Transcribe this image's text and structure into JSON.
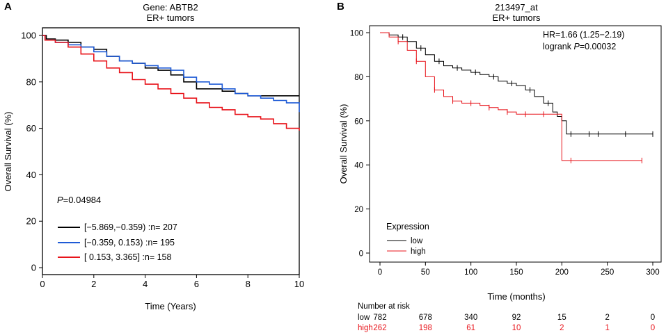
{
  "panels": {
    "a": {
      "letter": "A",
      "title_line1": "Gene: ABTB2",
      "title_line2": "ER+ tumors",
      "pvalue_prefix": "P",
      "pvalue_value": "=0.04984"
    },
    "b": {
      "letter": "B",
      "title_line1": "213497_at",
      "title_line2": "ER+ tumors",
      "hr_text": "HR=1.66 (1.25−2.19)",
      "logrank_prefix": "logrank ",
      "logrank_p": "P",
      "logrank_value": "=0.00032",
      "legend_title": "Expression",
      "risk_title": "Number at risk",
      "risk_rows": [
        {
          "label": "low",
          "color": "#000000",
          "values": [
            "782",
            "678",
            "340",
            "92",
            "15",
            "2",
            "0"
          ]
        },
        {
          "label": "high",
          "color": "#e8141b",
          "values": [
            "262",
            "198",
            "61",
            "10",
            "2",
            "1",
            "0"
          ]
        }
      ]
    }
  },
  "chart_data": [
    {
      "type": "line",
      "title": "Gene: ABTB2 ER+ tumors",
      "xlabel": "Time (Years)",
      "ylabel": "Overall Survival (%)",
      "xlim": [
        0,
        10
      ],
      "ylim": [
        0,
        100
      ],
      "xticks": [
        "0",
        "2",
        "4",
        "6",
        "8",
        "10"
      ],
      "yticks": [
        "0",
        "20",
        "40",
        "60",
        "80",
        "100"
      ],
      "annotation": "P=0.04984",
      "series": [
        {
          "name": "[−5.869,−0.359) :n= 207",
          "color": "#000000",
          "x": [
            0,
            0.15,
            0.5,
            1.0,
            1.5,
            2.0,
            2.5,
            3.0,
            3.5,
            4.0,
            4.5,
            5.0,
            5.5,
            6.0,
            6.5,
            7.0,
            7.5,
            8.0,
            9.0,
            10.0
          ],
          "y": [
            100,
            98.5,
            98,
            97,
            95,
            94,
            91,
            89,
            88,
            86,
            85,
            83,
            80,
            77,
            77,
            76,
            75,
            74,
            74,
            74
          ]
        },
        {
          "name": "[−0.359, 0.153) :n= 195",
          "color": "#1f5bd6",
          "x": [
            0,
            0.1,
            0.5,
            1.0,
            1.5,
            2.0,
            2.5,
            3.0,
            3.5,
            4.0,
            4.5,
            5.0,
            5.5,
            6.0,
            6.5,
            7.0,
            7.5,
            8.0,
            8.5,
            9.0,
            9.5,
            10.0
          ],
          "y": [
            100,
            98,
            97,
            96,
            95,
            93,
            91,
            89,
            88,
            87,
            86,
            85,
            82,
            80,
            79,
            77,
            75,
            74,
            73,
            72,
            71,
            67
          ]
        },
        {
          "name": "[ 0.153, 3.365] :n= 158",
          "color": "#e8141b",
          "x": [
            0,
            0.1,
            0.5,
            1.0,
            1.5,
            2.0,
            2.5,
            3.0,
            3.5,
            4.0,
            4.5,
            5.0,
            5.5,
            6.0,
            6.5,
            7.0,
            7.5,
            8.0,
            8.5,
            9.0,
            9.5,
            10.0
          ],
          "y": [
            100,
            98,
            97,
            95,
            92,
            89,
            86,
            84,
            81,
            79,
            77,
            75,
            73,
            71,
            69,
            68,
            66,
            65,
            64,
            62,
            60,
            59
          ]
        }
      ]
    },
    {
      "type": "line",
      "title": "213497_at ER+ tumors",
      "xlabel": "Time (months)",
      "ylabel": "Overall Survival (%)",
      "xlim": [
        0,
        300
      ],
      "ylim": [
        0,
        100
      ],
      "xticks": [
        "0",
        "50",
        "100",
        "150",
        "200",
        "250",
        "300"
      ],
      "yticks": [
        "0",
        "20",
        "40",
        "60",
        "80",
        "100"
      ],
      "series": [
        {
          "name": "low",
          "color": "#000000",
          "x": [
            0,
            10,
            20,
            30,
            40,
            50,
            60,
            70,
            80,
            90,
            100,
            110,
            120,
            130,
            140,
            150,
            160,
            170,
            180,
            190,
            195,
            198,
            200,
            205,
            210,
            220,
            250,
            300
          ],
          "y": [
            100,
            99,
            98,
            96,
            93,
            90,
            87,
            85,
            84,
            83,
            82,
            81,
            80,
            78,
            77,
            76,
            74,
            71,
            68,
            64,
            62,
            62,
            60,
            54,
            54,
            54,
            54,
            54
          ],
          "censor_x": [
            25,
            45,
            65,
            85,
            105,
            125,
            145,
            165,
            185,
            210,
            230,
            240,
            270,
            300
          ]
        },
        {
          "name": "high",
          "color": "#e8141b",
          "x": [
            0,
            10,
            20,
            30,
            40,
            50,
            60,
            70,
            80,
            90,
            100,
            110,
            120,
            130,
            140,
            150,
            170,
            190,
            197,
            200,
            210,
            230,
            250,
            288
          ],
          "y": [
            100,
            98,
            96,
            92,
            87,
            80,
            74,
            71,
            69,
            68,
            68,
            67,
            66,
            65,
            64,
            63,
            63,
            63,
            63,
            42,
            42,
            42,
            42,
            42
          ],
          "censor_x": [
            20,
            40,
            60,
            80,
            100,
            120,
            140,
            160,
            180,
            210,
            288
          ]
        }
      ]
    }
  ]
}
